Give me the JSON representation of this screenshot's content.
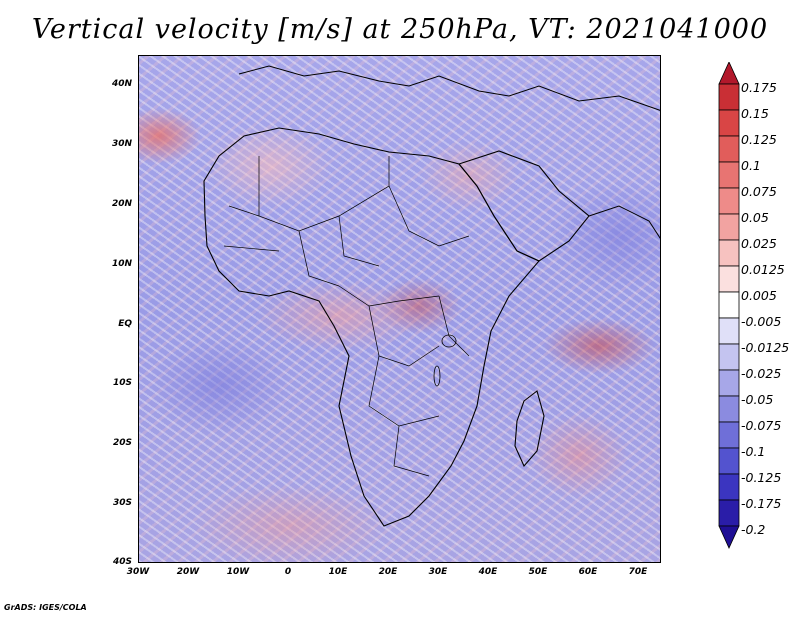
{
  "title": "Vertical velocity [m/s] at 250hPa, VT: 2021041000",
  "footer": "GrADS: IGES/COLA",
  "map": {
    "field": "vertical velocity",
    "level": "250hPa",
    "valid_time": "2021041000",
    "projection": "latlon",
    "lon_range": [
      -30,
      75
    ],
    "lat_range": [
      -40,
      45
    ],
    "lat_labels": [
      "40N",
      "30N",
      "20N",
      "10N",
      "EQ",
      "10S",
      "20S",
      "30S",
      "40S"
    ],
    "lon_labels": [
      "30W",
      "20W",
      "10W",
      "0",
      "10E",
      "20E",
      "30E",
      "40E",
      "50E",
      "60E",
      "70E"
    ],
    "color_low": "#3c1eb4",
    "color_high": "#b4142a"
  },
  "colorbar": {
    "labels": [
      "0.175",
      "0.15",
      "0.125",
      "0.1",
      "0.075",
      "0.05",
      "0.025",
      "0.0125",
      "0.005",
      "-0.005",
      "-0.0125",
      "-0.025",
      "-0.05",
      "-0.075",
      "-0.1",
      "-0.125",
      "-0.175",
      "-0.2"
    ],
    "colors": [
      "#b2182b",
      "#c92f35",
      "#d94545",
      "#e15d5b",
      "#e87472",
      "#ee8b89",
      "#f2a3a1",
      "#f7c2c0",
      "#fbe0df",
      "#ffffff",
      "#e0e0f8",
      "#c4c4f0",
      "#a7a7e8",
      "#8b8be0",
      "#6f6fd8",
      "#5353cf",
      "#3b35c0",
      "#2a1da8",
      "#1f0f95"
    ]
  }
}
